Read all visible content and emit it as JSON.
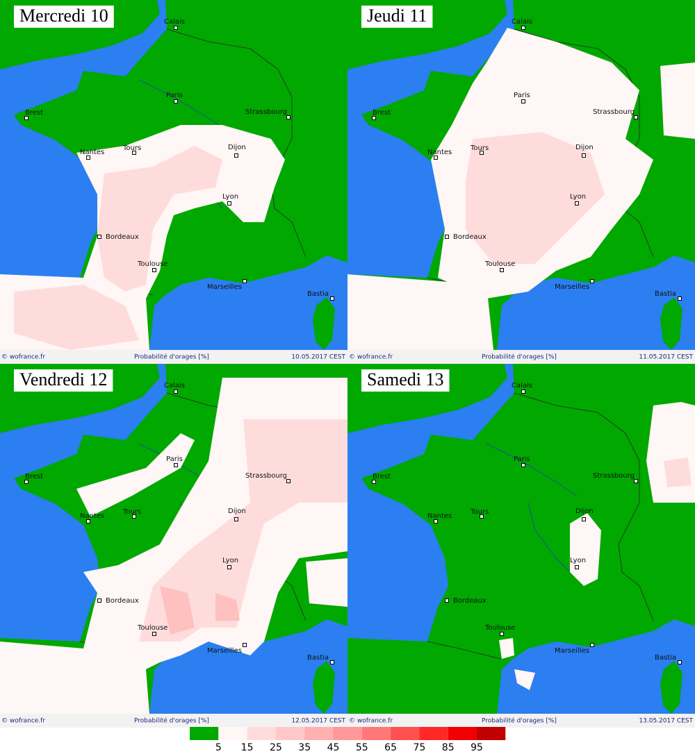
{
  "panels": [
    {
      "title": "Mercredi 10",
      "credit": "© wofrance.fr",
      "caption": "Probabilité d'orages [%]",
      "date": "10.05.2017 CEST",
      "cities": [
        "Calais",
        "Paris",
        "Brest",
        "Strassbourg",
        "Nantes",
        "Tours",
        "Dijon",
        "Lyon",
        "Bordeaux",
        "Toulouse",
        "Marseilles",
        "Bastia"
      ]
    },
    {
      "title": "Jeudi 11",
      "credit": "© wofrance.fr",
      "caption": "Probabilité d'orages [%]",
      "date": "11.05.2017 CEST",
      "cities": [
        "Calais",
        "Paris",
        "Brest",
        "Strassbourg",
        "Nantes",
        "Tours",
        "Dijon",
        "Lyon",
        "Bordeaux",
        "Toulouse",
        "Marseilles",
        "Bastia"
      ]
    },
    {
      "title": "Vendredi 12",
      "credit": "© wofrance.fr",
      "caption": "Probabilité d'orages [%]",
      "date": "12.05.2017 CEST",
      "cities": [
        "Calais",
        "Paris",
        "Brest",
        "Strassbourg",
        "Nantes",
        "Tours",
        "Dijon",
        "Lyon",
        "Bordeaux",
        "Toulouse",
        "Marseilles",
        "Bastia"
      ]
    },
    {
      "title": "Samedi 13",
      "credit": "© wofrance.fr",
      "caption": "Probabilité d'orages [%]",
      "date": "13.05.2017 CEST",
      "cities": [
        "Calais",
        "Paris",
        "Brest",
        "Strassbourg",
        "Nantes",
        "Tours",
        "Dijon",
        "Lyon",
        "Bordeaux",
        "Toulouse",
        "Marseilles",
        "Bastia"
      ]
    }
  ],
  "legend": {
    "labels": [
      "5",
      "15",
      "25",
      "35",
      "45",
      "55",
      "65",
      "75",
      "85",
      "95"
    ],
    "colors": [
      "#00a800",
      "#fff6f6",
      "#ffdcdc",
      "#ffc8c8",
      "#ffb0b0",
      "#ff9898",
      "#ff7878",
      "#ff5050",
      "#ff2828",
      "#f00000",
      "#c00000"
    ]
  }
}
